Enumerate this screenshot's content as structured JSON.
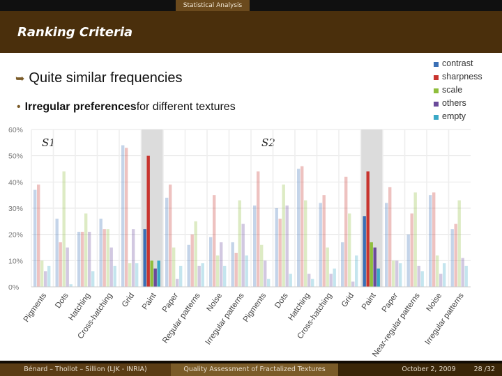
{
  "top_section": "Statistical Analysis",
  "slide_title": "Ranking Criteria",
  "bullet1": "Quite similar frequencies",
  "bullet2_bold": "Irregular preferences",
  "bullet2_rest": "for different textures",
  "legend": [
    {
      "label": "contrast",
      "color": "#3a6fb5"
    },
    {
      "label": "sharpness",
      "color": "#c8342e"
    },
    {
      "label": "scale",
      "color": "#8fbe3c"
    },
    {
      "label": "others",
      "color": "#6a4a9a"
    },
    {
      "label": "empty",
      "color": "#3aa8c6"
    }
  ],
  "footer": {
    "authors": "Bénard – Thollot – Sillion (LJK - INRIA)",
    "talk_title": "Quality Assessment of Fractalized Textures",
    "date": "October 2, 2009",
    "page": "28 /32"
  },
  "chart_data": {
    "type": "bar",
    "ylim": [
      0,
      60
    ],
    "yticks": [
      "0%",
      "10%",
      "20%",
      "30%",
      "40%",
      "50%",
      "60%"
    ],
    "series_names": [
      "contrast",
      "sharpness",
      "scale",
      "others",
      "empty"
    ],
    "panels": [
      {
        "label": "S1",
        "categories": [
          "Pigments",
          "Dots",
          "Hatching",
          "Cross-hatching",
          "Grid",
          "Paint",
          "Paper",
          "Regular patterns",
          "Noise",
          "Irregular patterns"
        ],
        "highlight": "Paint",
        "values": [
          [
            37,
            39,
            10,
            6,
            8
          ],
          [
            26,
            17,
            44,
            15,
            1
          ],
          [
            21,
            21,
            28,
            21,
            6
          ],
          [
            26,
            22,
            22,
            15,
            8
          ],
          [
            54,
            53,
            9,
            22,
            9
          ],
          [
            22,
            50,
            10,
            7,
            10
          ],
          [
            34,
            39,
            15,
            3,
            8
          ],
          [
            16,
            20,
            25,
            8,
            9
          ],
          [
            19,
            35,
            12,
            17,
            8
          ],
          [
            17,
            13,
            33,
            24,
            12
          ]
        ]
      },
      {
        "label": "S2",
        "categories": [
          "Pigments",
          "Dots",
          "Hatching",
          "Cross-hatching",
          "Grid",
          "Paint",
          "Paper",
          "Near-regular patterns",
          "Noise",
          "Irregular patterns"
        ],
        "highlight": "Paint",
        "values": [
          [
            31,
            44,
            16,
            10,
            3
          ],
          [
            30,
            26,
            39,
            31,
            5
          ],
          [
            45,
            46,
            33,
            5,
            3
          ],
          [
            32,
            35,
            15,
            5,
            7
          ],
          [
            17,
            42,
            28,
            2,
            12
          ],
          [
            27,
            44,
            17,
            15,
            7
          ],
          [
            32,
            38,
            10,
            10,
            9
          ],
          [
            20,
            28,
            36,
            8,
            6
          ],
          [
            35,
            36,
            12,
            5,
            9
          ],
          [
            22,
            24,
            33,
            11,
            8
          ]
        ]
      }
    ]
  }
}
